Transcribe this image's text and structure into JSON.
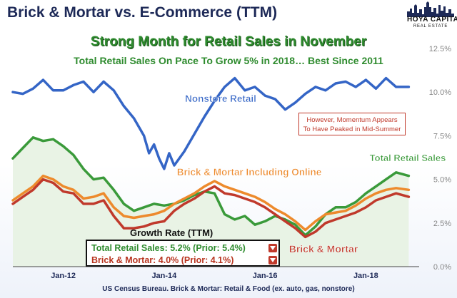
{
  "header": {
    "title": "Brick & Mortar vs. E-Commerce (TTM)",
    "subtitle": "Strong Month for Retail Sales in November",
    "subtitle2": "Total Retail Sales On Pace To Grow 5% in 2018… Best Since 2011"
  },
  "logo": {
    "line1": "HOYA CAPITAL",
    "line2": "REAL ESTATE"
  },
  "annotation": {
    "line1": "However, Momentum Appears",
    "line2": "To Have Peaked in Mid-Summer"
  },
  "growth_box": {
    "title": "Growth Rate (TTM)",
    "rows": [
      {
        "text": "Total Retail Sales: 5.2% (Prior: 5.4%)",
        "color": "#2e8b2e"
      },
      {
        "text": "Brick & Mortar: 4.0% (Prior: 4.1%)",
        "color": "#b8341f"
      }
    ]
  },
  "source": "US Census Bureau. Brick & Mortar: Retail & Food (ex. auto, gas, nonstore)",
  "colors": {
    "nonstore": "#3465c6",
    "total": "#3a9a3a",
    "online": "#ed8a2c",
    "brick": "#c0392b",
    "title": "#1d2957"
  },
  "chart_data": {
    "type": "line",
    "x_ticks": [
      "Jan-12",
      "Jan-14",
      "Jan-16",
      "Jan-18"
    ],
    "x_tick_positions": [
      2012.0,
      2014.0,
      2016.0,
      2018.0
    ],
    "xlim": [
      2011.0,
      2019.0
    ],
    "ylim": [
      0.0,
      12.5
    ],
    "y_ticks": [
      "0.0%",
      "2.5%",
      "5.0%",
      "7.5%",
      "10.0%",
      "12.5%"
    ],
    "y_tick_values": [
      0.0,
      2.5,
      5.0,
      7.5,
      10.0,
      12.5
    ],
    "grid": false,
    "series": [
      {
        "name": "Nonstore Retail",
        "color": "#3465c6",
        "x": [
          2011.0,
          2011.2,
          2011.4,
          2011.6,
          2011.8,
          2012.0,
          2012.2,
          2012.4,
          2012.6,
          2012.8,
          2013.0,
          2013.2,
          2013.4,
          2013.6,
          2013.7,
          2013.8,
          2013.9,
          2014.0,
          2014.1,
          2014.2,
          2014.4,
          2014.6,
          2014.8,
          2015.0,
          2015.2,
          2015.4,
          2015.6,
          2015.8,
          2016.0,
          2016.2,
          2016.4,
          2016.6,
          2016.8,
          2017.0,
          2017.2,
          2017.4,
          2017.6,
          2017.8,
          2018.0,
          2018.2,
          2018.4,
          2018.6,
          2018.85
        ],
        "values": [
          10.0,
          9.9,
          10.2,
          10.7,
          10.1,
          10.1,
          10.4,
          10.6,
          10.0,
          10.6,
          10.1,
          9.2,
          8.5,
          7.5,
          6.5,
          7.0,
          6.2,
          5.6,
          6.5,
          5.8,
          6.6,
          7.6,
          8.6,
          9.5,
          10.3,
          10.8,
          10.1,
          10.3,
          9.8,
          9.6,
          9.0,
          9.4,
          9.9,
          10.3,
          10.1,
          10.5,
          10.6,
          10.3,
          10.7,
          10.2,
          10.8,
          10.3,
          10.3
        ]
      },
      {
        "name": "Total Retail Sales",
        "color": "#3a9a3a",
        "x": [
          2011.0,
          2011.2,
          2011.4,
          2011.6,
          2011.8,
          2012.0,
          2012.2,
          2012.4,
          2012.6,
          2012.8,
          2013.0,
          2013.2,
          2013.4,
          2013.6,
          2013.8,
          2014.0,
          2014.2,
          2014.4,
          2014.6,
          2014.8,
          2015.0,
          2015.2,
          2015.4,
          2015.6,
          2015.8,
          2016.0,
          2016.2,
          2016.4,
          2016.6,
          2016.8,
          2017.0,
          2017.2,
          2017.4,
          2017.6,
          2017.8,
          2018.0,
          2018.2,
          2018.4,
          2018.6,
          2018.85
        ],
        "values": [
          6.2,
          6.8,
          7.4,
          7.2,
          7.3,
          6.9,
          6.4,
          5.6,
          5.0,
          5.1,
          4.4,
          3.6,
          3.2,
          3.4,
          3.6,
          3.5,
          3.6,
          3.8,
          4.1,
          4.3,
          4.2,
          3.0,
          2.7,
          2.9,
          2.4,
          2.6,
          2.9,
          2.7,
          2.4,
          1.8,
          2.3,
          3.0,
          3.4,
          3.4,
          3.7,
          4.2,
          4.6,
          5.0,
          5.4,
          5.2
        ]
      },
      {
        "name": "Brick & Mortar Including Online",
        "color": "#ed8a2c",
        "x": [
          2011.0,
          2011.2,
          2011.4,
          2011.6,
          2011.8,
          2012.0,
          2012.2,
          2012.4,
          2012.6,
          2012.8,
          2013.0,
          2013.2,
          2013.4,
          2013.6,
          2013.8,
          2014.0,
          2014.2,
          2014.4,
          2014.6,
          2014.8,
          2015.0,
          2015.2,
          2015.4,
          2015.6,
          2015.8,
          2016.0,
          2016.2,
          2016.4,
          2016.6,
          2016.8,
          2017.0,
          2017.2,
          2017.4,
          2017.6,
          2017.8,
          2018.0,
          2018.2,
          2018.4,
          2018.6,
          2018.85
        ],
        "values": [
          3.8,
          4.2,
          4.6,
          5.2,
          5.0,
          4.6,
          4.4,
          3.9,
          4.0,
          4.2,
          3.4,
          2.9,
          2.8,
          2.9,
          3.0,
          3.2,
          3.6,
          3.9,
          4.2,
          4.6,
          4.9,
          4.6,
          4.4,
          4.2,
          4.0,
          3.7,
          3.3,
          3.0,
          2.6,
          2.1,
          2.6,
          3.0,
          3.1,
          3.2,
          3.5,
          3.9,
          4.2,
          4.4,
          4.5,
          4.4
        ]
      },
      {
        "name": "Brick & Mortar",
        "color": "#c0392b",
        "x": [
          2011.0,
          2011.2,
          2011.4,
          2011.6,
          2011.8,
          2012.0,
          2012.2,
          2012.4,
          2012.6,
          2012.8,
          2013.0,
          2013.2,
          2013.4,
          2013.6,
          2013.8,
          2014.0,
          2014.2,
          2014.4,
          2014.6,
          2014.8,
          2015.0,
          2015.2,
          2015.4,
          2015.6,
          2015.8,
          2016.0,
          2016.2,
          2016.4,
          2016.6,
          2016.8,
          2017.0,
          2017.2,
          2017.4,
          2017.6,
          2017.8,
          2018.0,
          2018.2,
          2018.4,
          2018.6,
          2018.85
        ],
        "values": [
          3.6,
          4.0,
          4.4,
          5.0,
          4.8,
          4.3,
          4.2,
          3.6,
          3.6,
          3.8,
          2.9,
          2.2,
          2.2,
          2.3,
          2.5,
          2.6,
          3.2,
          3.6,
          3.9,
          4.3,
          4.6,
          4.2,
          4.1,
          3.9,
          3.7,
          3.4,
          3.0,
          2.6,
          2.2,
          1.7,
          2.0,
          2.5,
          2.7,
          2.9,
          3.1,
          3.4,
          3.8,
          4.0,
          4.2,
          4.0
        ]
      }
    ],
    "labels": [
      {
        "text": "Nonstore Retail",
        "series": "Nonstore Retail"
      },
      {
        "text": "Total Retail Sales",
        "series": "Total Retail Sales"
      },
      {
        "text": "Brick & Mortar Including Online",
        "series": "Brick & Mortar Including Online"
      },
      {
        "text": "Brick & Mortar",
        "series": "Brick & Mortar"
      }
    ]
  }
}
